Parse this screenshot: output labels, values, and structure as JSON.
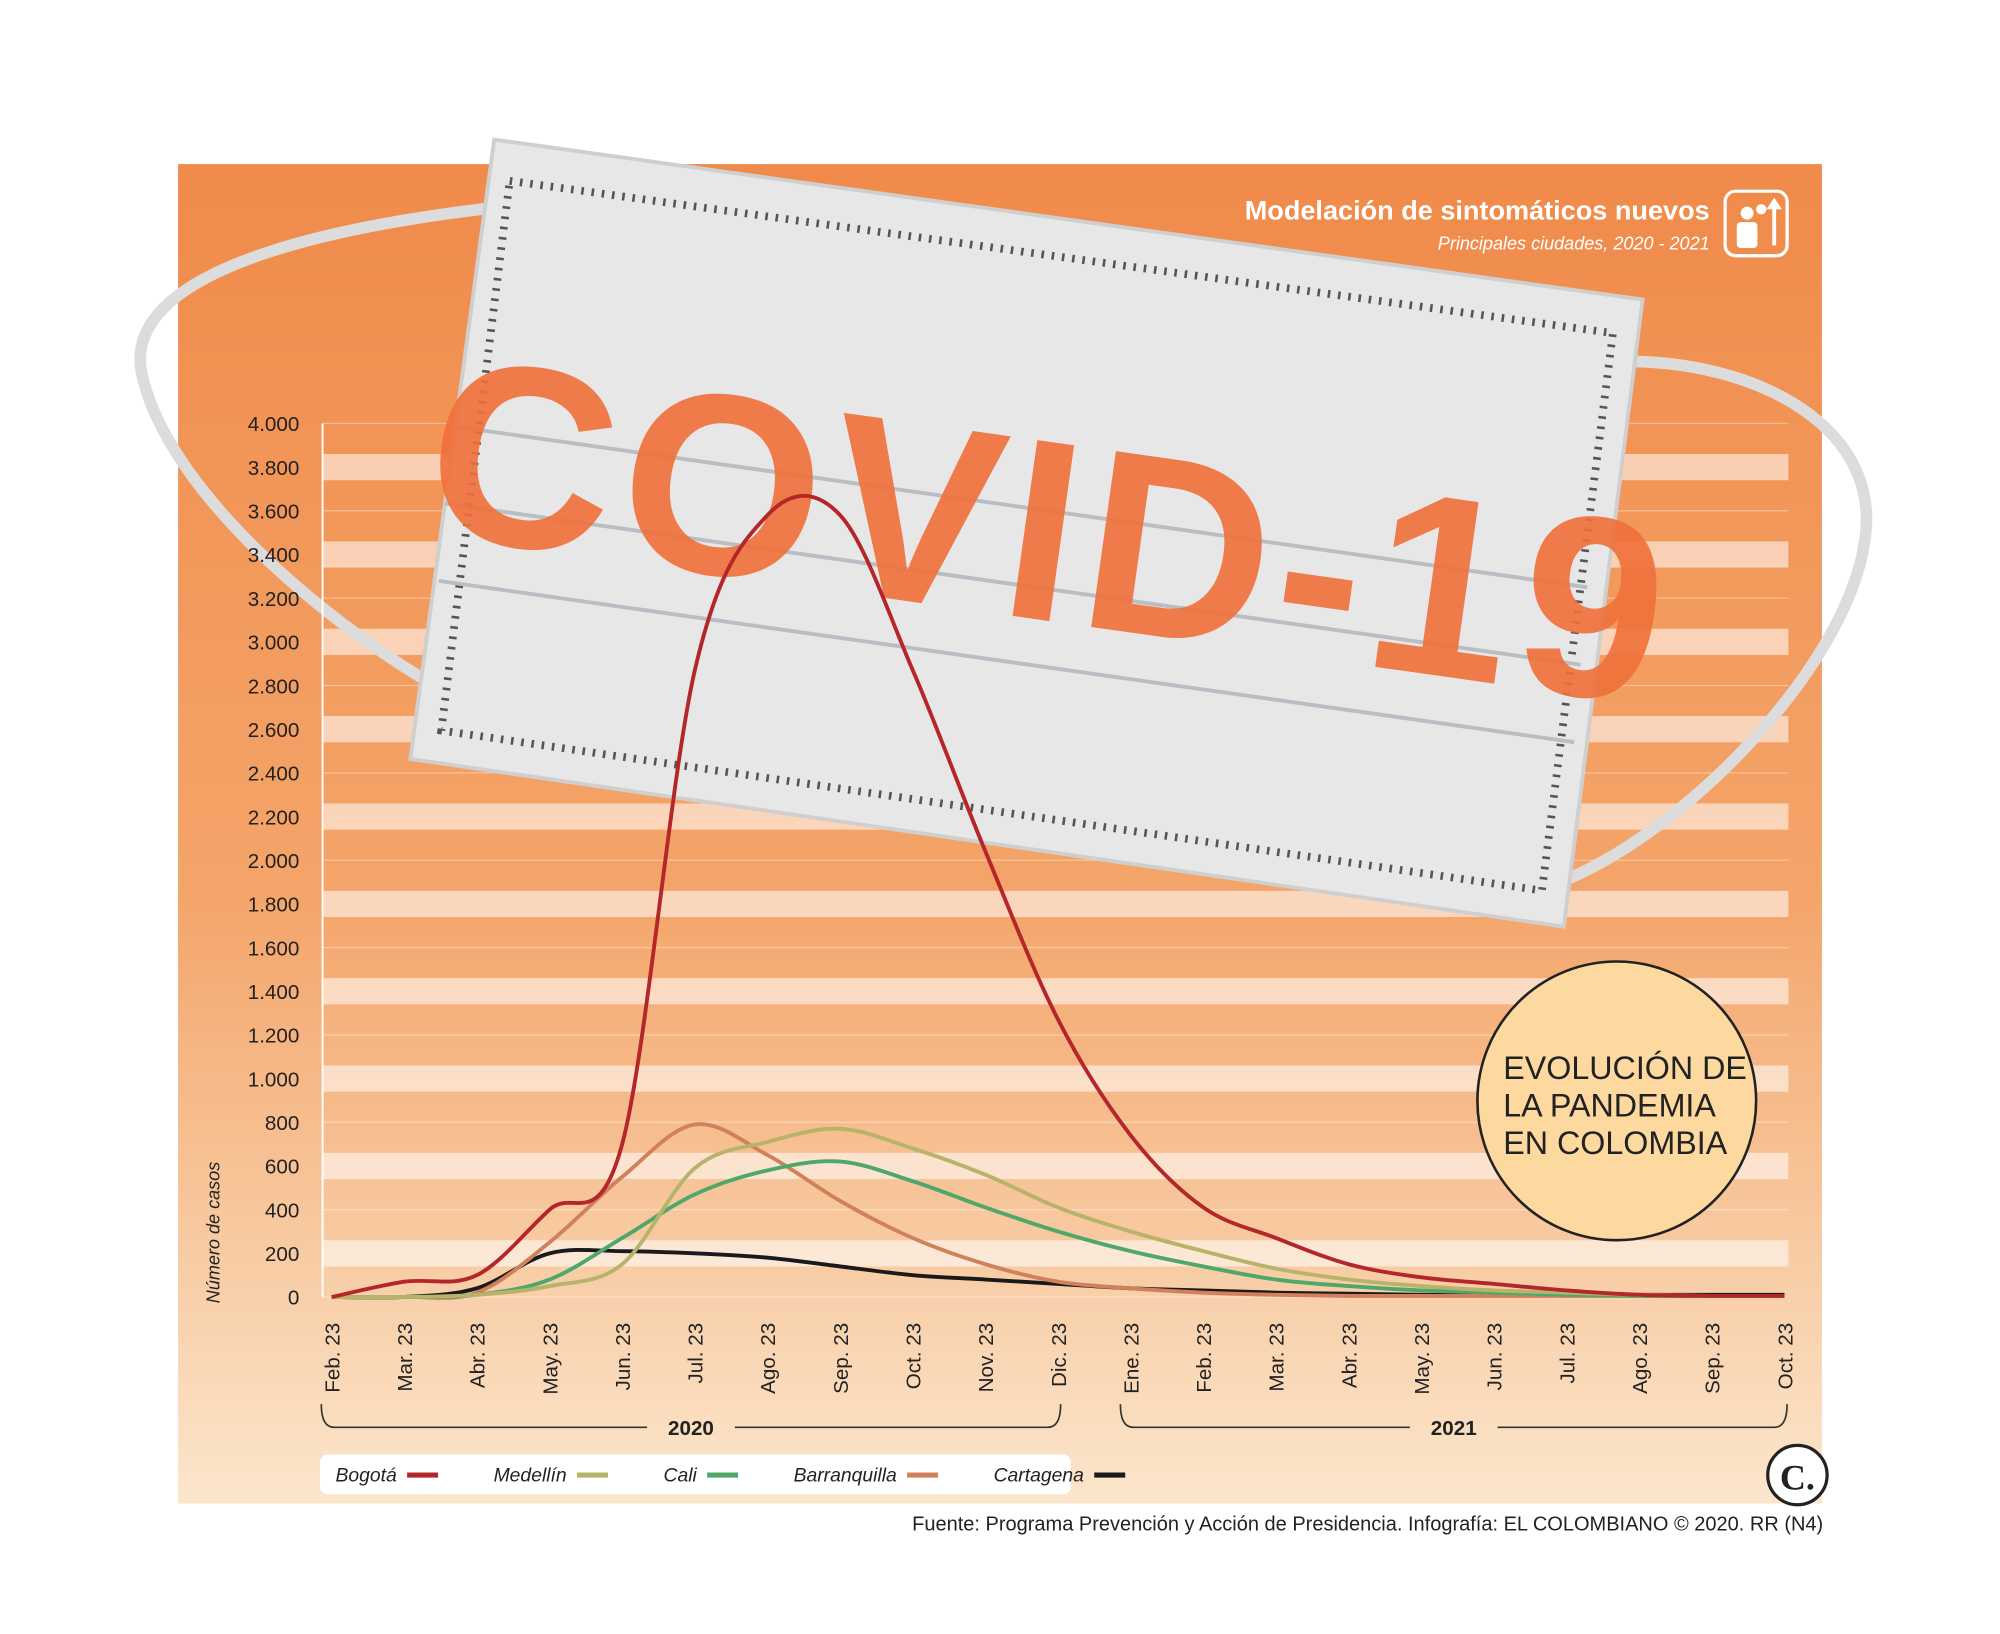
{
  "chart_data": {
    "type": "line",
    "title": "Modelación de sintomáticos nuevos",
    "subtitle": "Principales ciudades, 2020 - 2021",
    "y_label": "Número de casos",
    "mask_text": "COVID-19",
    "annotation": [
      "EVOLUCIÓN DE",
      "LA PANDEMIA",
      "EN COLOMBIA"
    ],
    "year_groups": [
      "2020",
      "2021"
    ],
    "logo": "C.",
    "source": "Fuente: Programa Prevención y Acción de Presidencia. Infografía: EL COLOMBIANO © 2020. RR (N4)",
    "categories": [
      "Feb. 23",
      "Mar. 23",
      "Abr. 23",
      "May. 23",
      "Jun. 23",
      "Jul. 23",
      "Ago. 23",
      "Sep. 23",
      "Oct. 23",
      "Nov. 23",
      "Dic. 23",
      "Ene. 23",
      "Feb. 23",
      "Mar. 23",
      "Abr. 23",
      "May. 23",
      "Jun. 23",
      "Jul. 23",
      "Ago. 23",
      "Sep. 23",
      "Oct. 23"
    ],
    "series": [
      {
        "name": "Bogotá",
        "color": "#b5262b",
        "values": [
          0,
          70,
          100,
          400,
          700,
          2870,
          3580,
          3580,
          2870,
          2040,
          1270,
          740,
          410,
          270,
          150,
          90,
          60,
          30,
          10,
          5,
          5
        ]
      },
      {
        "name": "Medellín",
        "color": "#b8b36a",
        "values": [
          0,
          0,
          10,
          50,
          150,
          590,
          710,
          770,
          680,
          560,
          410,
          300,
          210,
          130,
          80,
          50,
          30,
          20,
          10,
          5,
          5
        ]
      },
      {
        "name": "Cali",
        "color": "#4fa86a",
        "values": [
          0,
          0,
          10,
          80,
          270,
          470,
          580,
          620,
          530,
          410,
          300,
          210,
          140,
          80,
          50,
          30,
          20,
          10,
          5,
          5,
          5
        ]
      },
      {
        "name": "Barranquilla",
        "color": "#d0805a",
        "values": [
          0,
          0,
          20,
          250,
          550,
          790,
          650,
          440,
          270,
          150,
          70,
          40,
          20,
          10,
          5,
          5,
          5,
          5,
          5,
          5,
          5
        ]
      },
      {
        "name": "Cartagena",
        "color": "#1a1a1a",
        "values": [
          0,
          0,
          40,
          200,
          210,
          200,
          180,
          140,
          100,
          80,
          60,
          40,
          30,
          20,
          15,
          10,
          10,
          10,
          10,
          10,
          10
        ]
      }
    ],
    "ylim": [
      0,
      4000
    ],
    "yticks": [
      0,
      200,
      400,
      600,
      800,
      {
        "value": 1000,
        "label": "1.000"
      },
      {
        "value": 1200,
        "label": "1.200"
      },
      {
        "value": 1400,
        "label": "1.400"
      },
      {
        "value": 1600,
        "label": "1.600"
      },
      {
        "value": 1800,
        "label": "1.800"
      },
      {
        "value": 2000,
        "label": "2.000"
      },
      {
        "value": 2200,
        "label": "2.200"
      },
      {
        "value": 2400,
        "label": "2.400"
      },
      {
        "value": 2600,
        "label": "2.600"
      },
      {
        "value": 2800,
        "label": "2.800"
      },
      {
        "value": 3000,
        "label": "3.000"
      },
      {
        "value": 3200,
        "label": "3.200"
      },
      {
        "value": 3400,
        "label": "3.400"
      },
      {
        "value": 3600,
        "label": "3.600"
      },
      {
        "value": 3800,
        "label": "3.800"
      },
      {
        "value": 4000,
        "label": "4.000"
      }
    ],
    "grid": true,
    "legend": "bottom-left"
  }
}
